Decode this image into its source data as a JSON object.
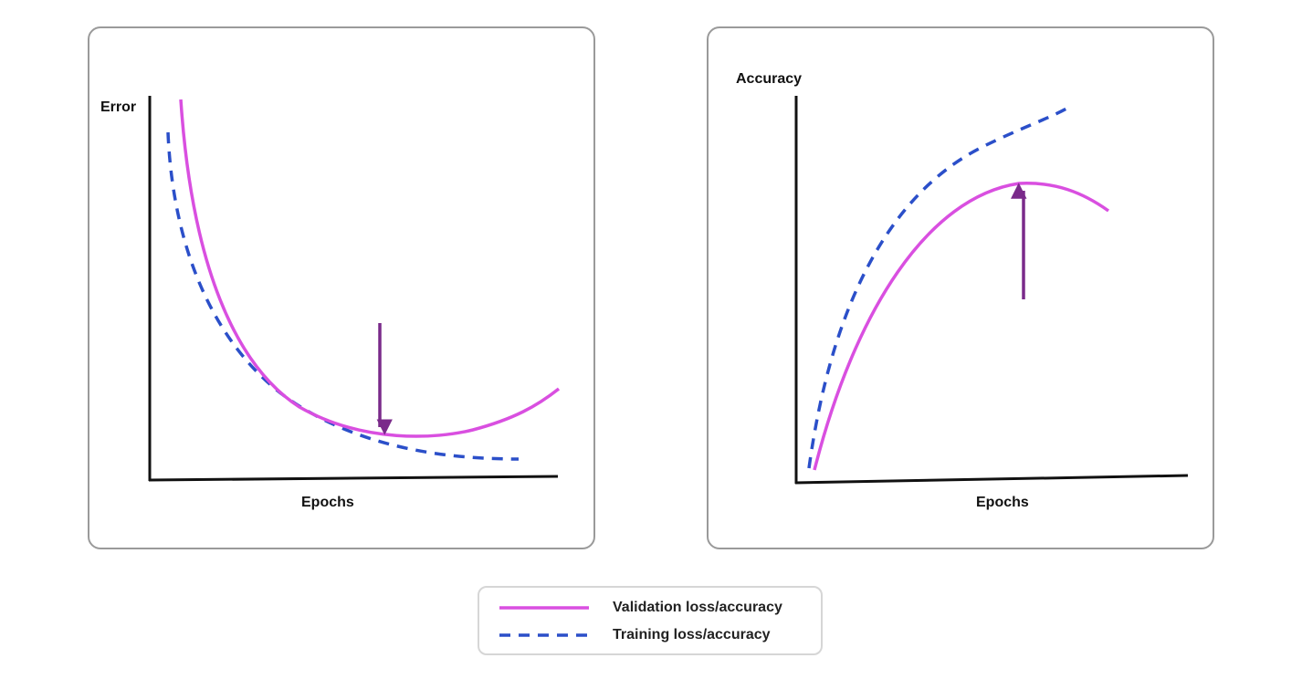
{
  "colors": {
    "validation": "#d94fe0",
    "training": "#2b4fc9",
    "arrow": "#7a2a8a",
    "axis": "#111111",
    "panel_border": "#9a9a9a"
  },
  "error_panel": {
    "ylabel": "Error",
    "xlabel": "Epochs"
  },
  "accuracy_panel": {
    "ylabel": "Accuracy",
    "xlabel": "Epochs"
  },
  "legend": {
    "validation_label": "Validation loss/accuracy",
    "training_label": "Training loss/accuracy"
  }
}
